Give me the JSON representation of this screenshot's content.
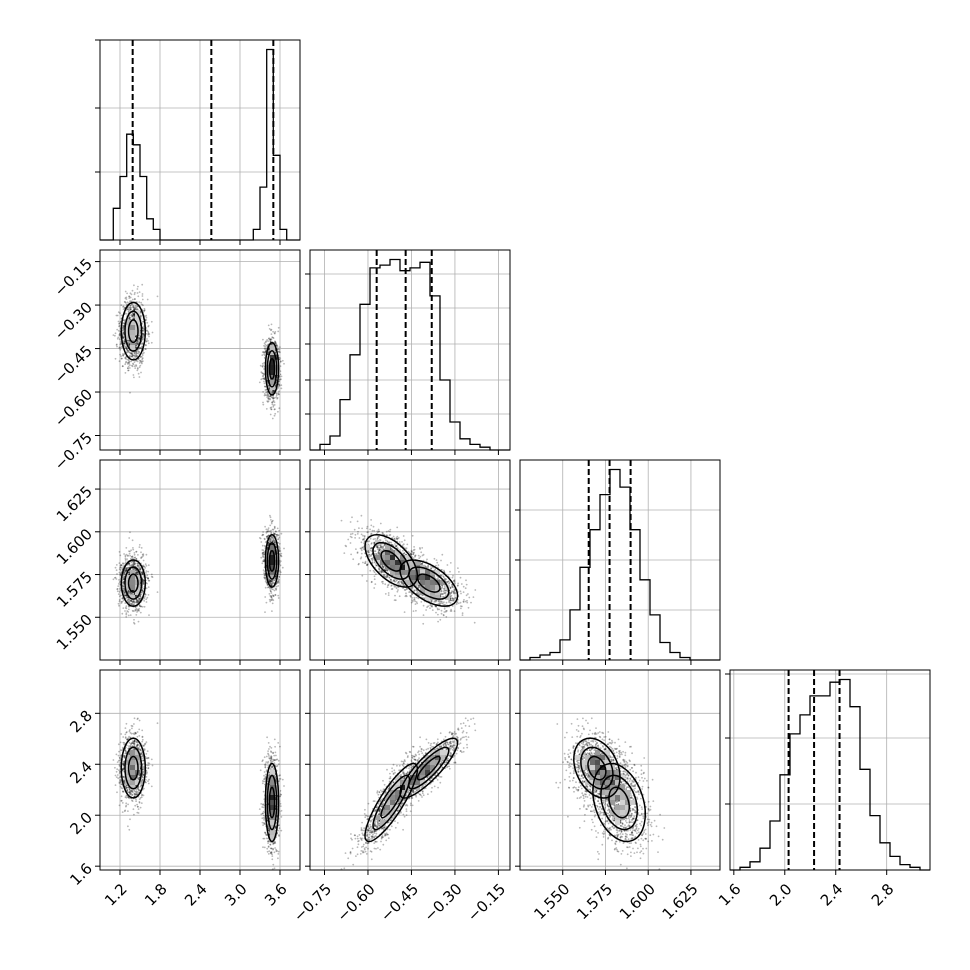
{
  "chart_data": {
    "type": "corner",
    "grid": true,
    "colors": {
      "line": "#000000",
      "grid": "#b0b0b0",
      "points": "#000000",
      "background": "#ffffff"
    },
    "parameters": [
      {
        "range": [
          0.9,
          3.9
        ],
        "ticks": [
          1.2,
          1.8,
          2.4,
          3.0,
          3.6
        ],
        "tick_labels": [
          "1.2",
          "1.8",
          "2.4",
          "3.0",
          "3.6"
        ]
      },
      {
        "range": [
          -0.8,
          -0.11
        ],
        "ticks": [
          -0.75,
          -0.6,
          -0.45,
          -0.3,
          -0.15
        ],
        "tick_labels": [
          "−0.75",
          "−0.60",
          "−0.45",
          "−0.30",
          "−0.15"
        ]
      },
      {
        "range": [
          1.525,
          1.642
        ],
        "ticks": [
          1.55,
          1.575,
          1.6,
          1.625
        ],
        "tick_labels": [
          "1.550",
          "1.575",
          "1.600",
          "1.625"
        ]
      },
      {
        "range": [
          1.57,
          3.14
        ],
        "ticks": [
          1.6,
          2.0,
          2.4,
          2.8
        ],
        "tick_labels": [
          "1.6",
          "2.0",
          "2.4",
          "2.8"
        ]
      }
    ],
    "histograms": [
      {
        "edges_range": [
          0.9,
          3.9
        ],
        "counts": [
          0,
          0,
          3,
          6,
          10,
          9,
          6,
          2,
          1,
          0,
          0,
          0,
          0,
          0,
          0,
          0,
          0,
          0,
          0,
          0,
          0,
          0,
          0,
          1,
          5,
          18,
          8,
          1,
          0,
          0
        ],
        "quantiles": [
          1.39,
          2.57,
          3.5
        ],
        "ytick_fracs": [
          0.34,
          0.66,
          1.0
        ]
      },
      {
        "edges_range": [
          -0.8,
          -0.11
        ],
        "counts": [
          0,
          2,
          5,
          18,
          34,
          52,
          65,
          66,
          68,
          64,
          65,
          67,
          55,
          25,
          10,
          4,
          2,
          1,
          0,
          0
        ],
        "quantiles": [
          -0.57,
          -0.47,
          -0.38
        ],
        "ytick_fracs": [
          0.18,
          0.35,
          0.53,
          0.71,
          0.88
        ]
      },
      {
        "edges_range": [
          1.525,
          1.642
        ],
        "counts": [
          0,
          1,
          2,
          3,
          8,
          20,
          37,
          52,
          66,
          76,
          69,
          52,
          32,
          18,
          7,
          3,
          1,
          0,
          0,
          0
        ],
        "quantiles": [
          1.5652,
          1.5774,
          1.5897
        ],
        "ytick_fracs": [
          0.25,
          0.5,
          0.75
        ]
      },
      {
        "edges_range": [
          1.57,
          3.14
        ],
        "counts": [
          0,
          1,
          3,
          8,
          18,
          35,
          50,
          57,
          64,
          64,
          69,
          70,
          60,
          37,
          20,
          10,
          5,
          2,
          1,
          0
        ],
        "quantiles": [
          2.03,
          2.23,
          2.43
        ],
        "ytick_fracs": [
          0.33,
          0.66,
          0.98
        ]
      }
    ],
    "populations": [
      {
        "weight": 0.5,
        "mean": [
          1.4,
          -0.39,
          1.57,
          2.37
        ],
        "sd": [
          0.1,
          0.055,
          0.0075,
          0.13
        ]
      },
      {
        "weight": 0.5,
        "mean": [
          3.48,
          -0.52,
          1.583,
          2.1
        ],
        "sd": [
          0.055,
          0.05,
          0.0085,
          0.17
        ]
      }
    ],
    "correlations": [
      [
        1,
        0,
        0,
        0
      ],
      [
        0,
        1,
        -0.55,
        0.85
      ],
      [
        0,
        -0.55,
        1,
        -0.3
      ],
      [
        0,
        0.85,
        -0.3,
        1
      ]
    ]
  }
}
